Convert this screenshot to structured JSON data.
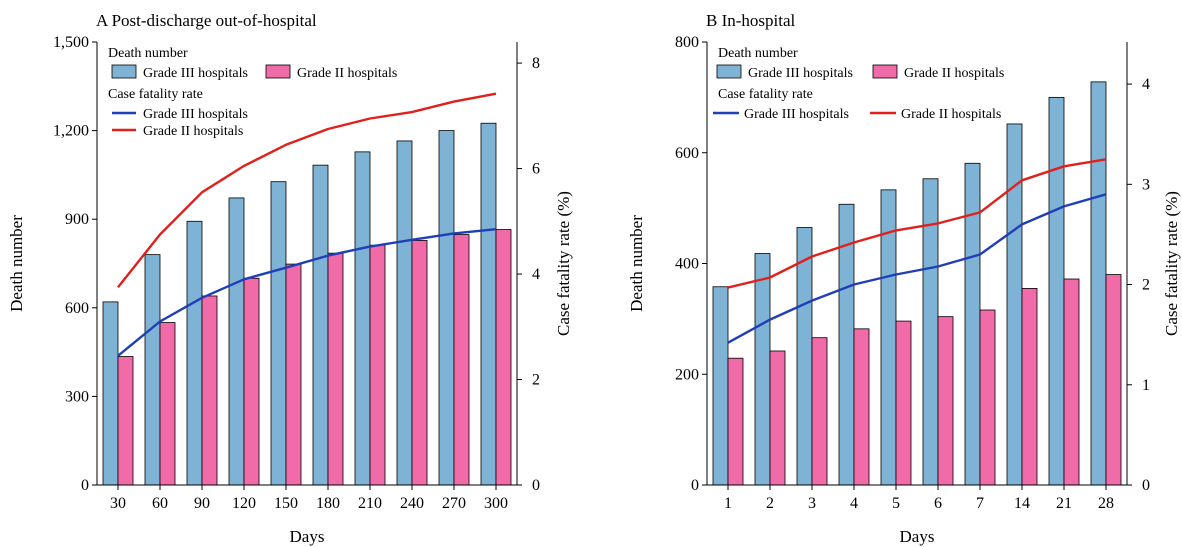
{
  "legend": {
    "death_header": "Death number",
    "cfr_header": "Case fatality rate",
    "grade3": "Grade III hospitals",
    "grade2": "Grade II hospitals"
  },
  "colors": {
    "grade3_bar": "#7fb3d5",
    "grade2_bar": "#f06ba8",
    "grade3_line": "#1f3fb8",
    "grade2_line": "#e0201c",
    "bar_stroke": "#000000"
  },
  "chart_data": [
    {
      "type": "bar",
      "title": "A Post-discharge out-of-hospital",
      "xlabel": "Days",
      "ylabel": "Death number",
      "y2label": "Case fatality rate (%)",
      "categories": [
        "30",
        "60",
        "90",
        "120",
        "150",
        "180",
        "210",
        "240",
        "270",
        "300"
      ],
      "ylim": [
        0,
        1500
      ],
      "yticks": [
        0,
        300,
        600,
        900,
        1200,
        1500
      ],
      "ytick_labels": [
        "0",
        "300",
        "600",
        "900",
        "1,200",
        "1,500"
      ],
      "y2lim": [
        0,
        8.4
      ],
      "y2ticks": [
        0,
        2,
        4,
        6,
        8
      ],
      "series": [
        {
          "name": "Grade III hospitals",
          "kind": "bar",
          "values": [
            620,
            780,
            893,
            972,
            1027,
            1083,
            1128,
            1165,
            1200,
            1225
          ]
        },
        {
          "name": "Grade II hospitals",
          "kind": "bar",
          "values": [
            435,
            550,
            640,
            700,
            748,
            785,
            812,
            828,
            848,
            865
          ]
        },
        {
          "name": "Grade III hospitals",
          "kind": "line",
          "axis": "right",
          "values": [
            2.45,
            3.1,
            3.55,
            3.9,
            4.12,
            4.35,
            4.52,
            4.65,
            4.77,
            4.85
          ]
        },
        {
          "name": "Grade II hospitals",
          "kind": "line",
          "axis": "right",
          "values": [
            3.75,
            4.75,
            5.55,
            6.05,
            6.45,
            6.75,
            6.95,
            7.07,
            7.27,
            7.42
          ]
        }
      ],
      "legend_position": "top-left"
    },
    {
      "type": "bar",
      "title": "B In-hospital",
      "xlabel": "Days",
      "ylabel": "Death number",
      "y2label": "Case fatality rate (%)",
      "categories": [
        "1",
        "2",
        "3",
        "4",
        "5",
        "6",
        "7",
        "14",
        "21",
        "28"
      ],
      "ylim": [
        0,
        800
      ],
      "yticks": [
        0,
        200,
        400,
        600,
        800
      ],
      "ytick_labels": [
        "0",
        "200",
        "400",
        "600",
        "800"
      ],
      "y2lim": [
        0,
        4.42
      ],
      "y2ticks": [
        0,
        1,
        2,
        3,
        4
      ],
      "series": [
        {
          "name": "Grade III hospitals",
          "kind": "bar",
          "values": [
            358,
            418,
            465,
            507,
            533,
            553,
            581,
            652,
            700,
            728
          ]
        },
        {
          "name": "Grade II hospitals",
          "kind": "bar",
          "values": [
            229,
            242,
            266,
            282,
            296,
            304,
            316,
            355,
            372,
            380
          ]
        },
        {
          "name": "Grade III hospitals",
          "kind": "line",
          "axis": "right",
          "values": [
            1.42,
            1.65,
            1.84,
            2.0,
            2.1,
            2.18,
            2.3,
            2.6,
            2.78,
            2.9
          ]
        },
        {
          "name": "Grade II hospitals",
          "kind": "line",
          "axis": "right",
          "values": [
            1.97,
            2.07,
            2.28,
            2.42,
            2.54,
            2.61,
            2.72,
            3.04,
            3.18,
            3.25
          ]
        }
      ],
      "legend_position": "top-left"
    }
  ]
}
